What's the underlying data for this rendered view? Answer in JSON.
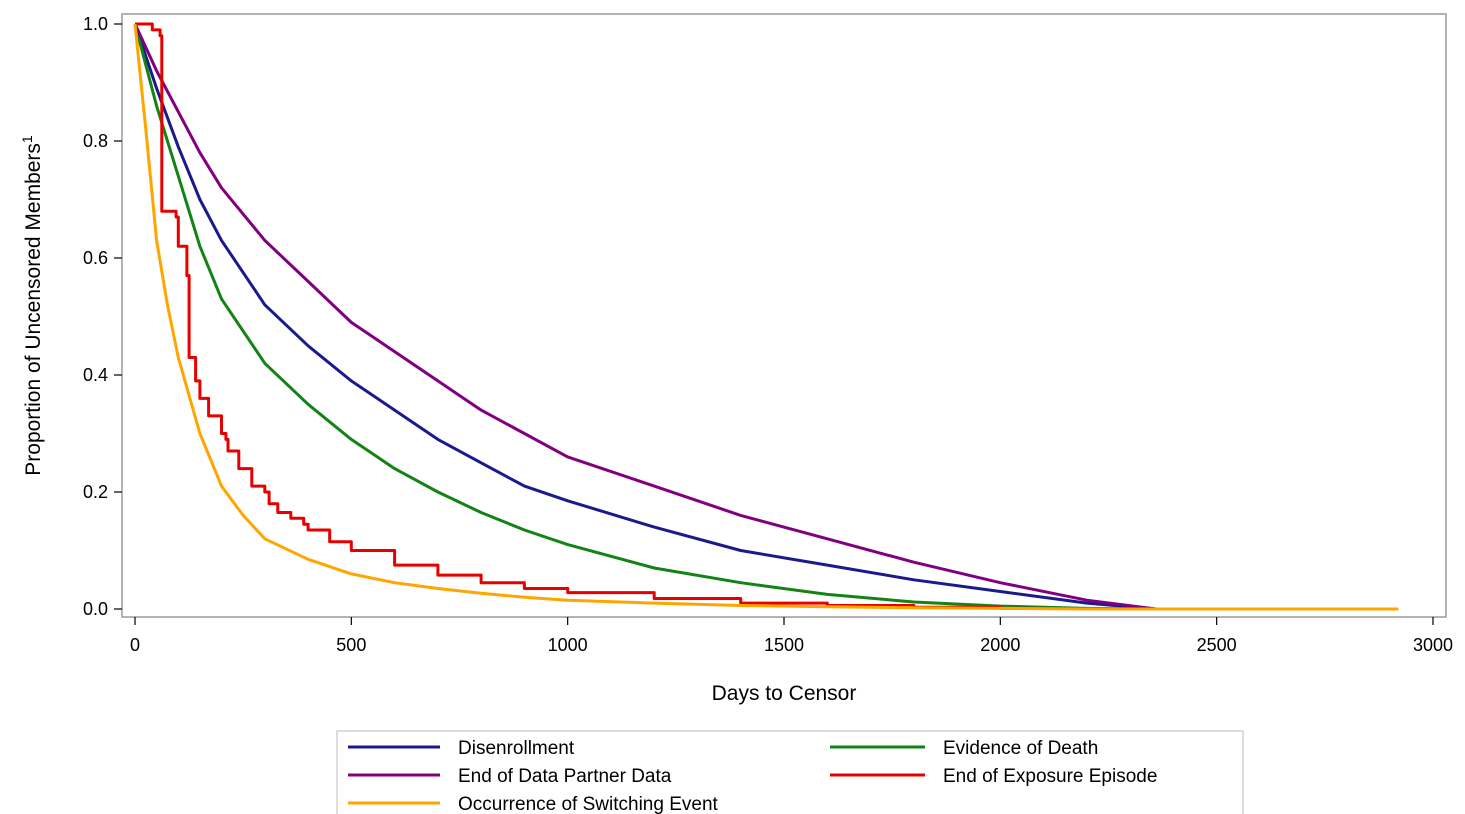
{
  "chart_data": {
    "type": "line",
    "title": "",
    "xlabel": "Days to Censor",
    "ylabel": "Proportion of Uncensored Members",
    "ylabel_superscript": "1",
    "xlim": [
      0,
      3000
    ],
    "ylim": [
      0,
      1.0
    ],
    "xticks": [
      0,
      500,
      1000,
      1500,
      2000,
      2500,
      3000
    ],
    "xtick_labels": [
      "0",
      "500",
      "1000",
      "1500",
      "2000",
      "2500",
      "3000"
    ],
    "yticks": [
      0,
      0.2,
      0.4,
      0.6,
      0.8,
      1.0
    ],
    "ytick_labels": [
      "0.0",
      "0.2",
      "0.4",
      "0.6",
      "0.8",
      "1.0"
    ],
    "grid": false,
    "legend_position": "bottom",
    "series": [
      {
        "name": "Disenrollment",
        "color": "#1a1a8c",
        "step": false,
        "x": [
          0,
          50,
          100,
          150,
          200,
          300,
          400,
          500,
          600,
          700,
          800,
          900,
          1000,
          1200,
          1400,
          1600,
          1800,
          2000,
          2200,
          2360
        ],
        "y": [
          1.0,
          0.89,
          0.79,
          0.7,
          0.63,
          0.52,
          0.45,
          0.39,
          0.34,
          0.29,
          0.25,
          0.21,
          0.185,
          0.14,
          0.1,
          0.075,
          0.05,
          0.03,
          0.01,
          0.0
        ]
      },
      {
        "name": "Evidence of Death",
        "color": "#148214",
        "step": false,
        "x": [
          0,
          50,
          100,
          150,
          200,
          300,
          400,
          500,
          600,
          700,
          800,
          900,
          1000,
          1200,
          1400,
          1600,
          1800,
          2000,
          2200,
          2360
        ],
        "y": [
          1.0,
          0.86,
          0.74,
          0.62,
          0.53,
          0.42,
          0.35,
          0.29,
          0.24,
          0.2,
          0.165,
          0.135,
          0.11,
          0.07,
          0.045,
          0.025,
          0.012,
          0.005,
          0.001,
          0.0
        ]
      },
      {
        "name": "End of Data Partner Data",
        "color": "#800080",
        "step": false,
        "x": [
          0,
          50,
          100,
          150,
          200,
          300,
          400,
          500,
          600,
          700,
          800,
          900,
          1000,
          1200,
          1400,
          1600,
          1800,
          2000,
          2200,
          2360
        ],
        "y": [
          1.0,
          0.92,
          0.85,
          0.78,
          0.72,
          0.63,
          0.56,
          0.49,
          0.44,
          0.39,
          0.34,
          0.3,
          0.26,
          0.21,
          0.16,
          0.12,
          0.08,
          0.045,
          0.015,
          0.0
        ]
      },
      {
        "name": "End of Exposure Episode",
        "color": "#e60000",
        "step": true,
        "x": [
          0,
          40,
          58,
          62,
          95,
          100,
          120,
          125,
          140,
          150,
          170,
          200,
          210,
          215,
          240,
          270,
          300,
          310,
          330,
          360,
          390,
          400,
          450,
          500,
          600,
          700,
          800,
          900,
          1000,
          1200,
          1400,
          1600,
          1800,
          2000,
          2100
        ],
        "y": [
          1.0,
          0.99,
          0.98,
          0.68,
          0.67,
          0.62,
          0.57,
          0.43,
          0.39,
          0.36,
          0.33,
          0.3,
          0.29,
          0.27,
          0.24,
          0.21,
          0.2,
          0.18,
          0.165,
          0.155,
          0.145,
          0.135,
          0.115,
          0.1,
          0.075,
          0.058,
          0.045,
          0.035,
          0.028,
          0.018,
          0.01,
          0.006,
          0.003,
          0.001,
          0.0
        ]
      },
      {
        "name": "Occurrence of Switching Event",
        "color": "#ffa500",
        "step": false,
        "x": [
          0,
          25,
          50,
          75,
          100,
          150,
          200,
          250,
          300,
          400,
          500,
          600,
          700,
          800,
          900,
          1000,
          1200,
          1400,
          1600,
          1800,
          2000,
          2200,
          2400,
          2600,
          2800,
          2920
        ],
        "y": [
          1.0,
          0.82,
          0.63,
          0.52,
          0.43,
          0.3,
          0.21,
          0.16,
          0.12,
          0.085,
          0.06,
          0.045,
          0.035,
          0.027,
          0.02,
          0.015,
          0.01,
          0.006,
          0.004,
          0.002,
          0.001,
          0.0,
          0.0,
          0.0,
          0.0,
          0.0
        ]
      }
    ],
    "legend_order": [
      0,
      1,
      2,
      3,
      4
    ]
  }
}
